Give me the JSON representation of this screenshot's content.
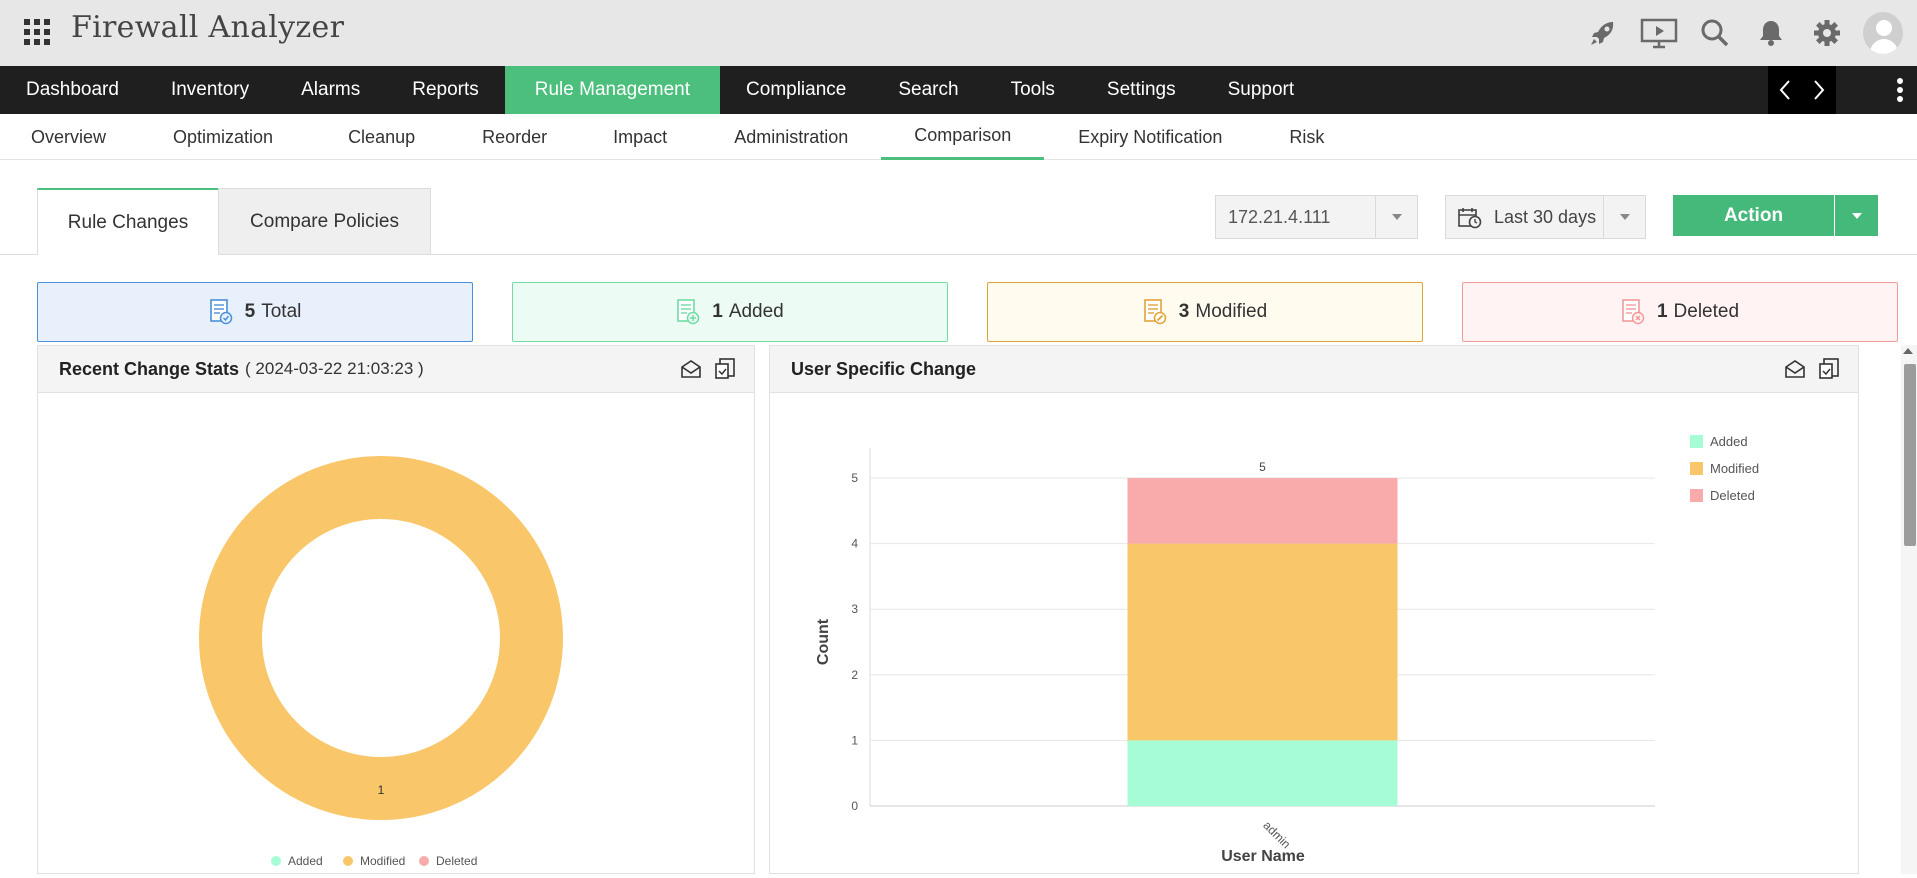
{
  "app": {
    "title": "Firewall Analyzer"
  },
  "header_icons": [
    "rocket-icon",
    "presentation-icon",
    "search-icon",
    "bell-icon",
    "gear-icon",
    "user-avatar"
  ],
  "main_nav": {
    "items": [
      {
        "label": "Dashboard"
      },
      {
        "label": "Inventory"
      },
      {
        "label": "Alarms"
      },
      {
        "label": "Reports"
      },
      {
        "label": "Rule Management",
        "active": true
      },
      {
        "label": "Compliance"
      },
      {
        "label": "Search"
      },
      {
        "label": "Tools"
      },
      {
        "label": "Settings"
      },
      {
        "label": "Support"
      }
    ],
    "prev_glyph": "‹",
    "next_glyph": "›"
  },
  "sub_nav": {
    "items": [
      {
        "label": "Overview"
      },
      {
        "label": "Optimization"
      },
      {
        "label": "Cleanup"
      },
      {
        "label": "Reorder"
      },
      {
        "label": "Impact"
      },
      {
        "label": "Administration"
      },
      {
        "label": "Comparison",
        "active": true
      },
      {
        "label": "Expiry Notification"
      },
      {
        "label": "Risk"
      }
    ]
  },
  "tabs": {
    "rule_changes": "Rule Changes",
    "compare_policies": "Compare Policies"
  },
  "filters": {
    "device": "172.21.4.111",
    "period": "Last 30 days",
    "action_label": "Action"
  },
  "summary": {
    "total": {
      "count": "5",
      "label": "Total"
    },
    "added": {
      "count": "1",
      "label": "Added"
    },
    "modified": {
      "count": "3",
      "label": "Modified"
    },
    "deleted": {
      "count": "1",
      "label": "Deleted"
    }
  },
  "colors": {
    "accent": "#4cbf7c",
    "added": "#a6fcd5",
    "modified": "#f9c76a",
    "deleted": "#f9abac"
  },
  "recent_stats": {
    "title": "Recent Change Stats",
    "timestamp": "( 2024-03-22 21:03:23 )"
  },
  "user_change": {
    "title": "User Specific Change"
  },
  "chart_data": [
    {
      "type": "pie",
      "title": "Recent Change Stats",
      "categories": [
        "Added",
        "Modified",
        "Deleted"
      ],
      "values": [
        0,
        1,
        0
      ],
      "data_labels": [
        "1"
      ],
      "legend": "bottom"
    },
    {
      "type": "bar",
      "stacked": true,
      "title": "User Specific Change",
      "xlabel": "User Name",
      "ylabel": "Count",
      "categories": [
        "admin"
      ],
      "series": [
        {
          "name": "Added",
          "values": [
            1
          ]
        },
        {
          "name": "Modified",
          "values": [
            3
          ]
        },
        {
          "name": "Deleted",
          "values": [
            1
          ]
        }
      ],
      "total_labels": [
        "5"
      ],
      "y_ticks": [
        "0",
        "1",
        "2",
        "3",
        "4",
        "5"
      ],
      "ylim": [
        0,
        5
      ],
      "grid": true,
      "legend": "top-right"
    }
  ]
}
